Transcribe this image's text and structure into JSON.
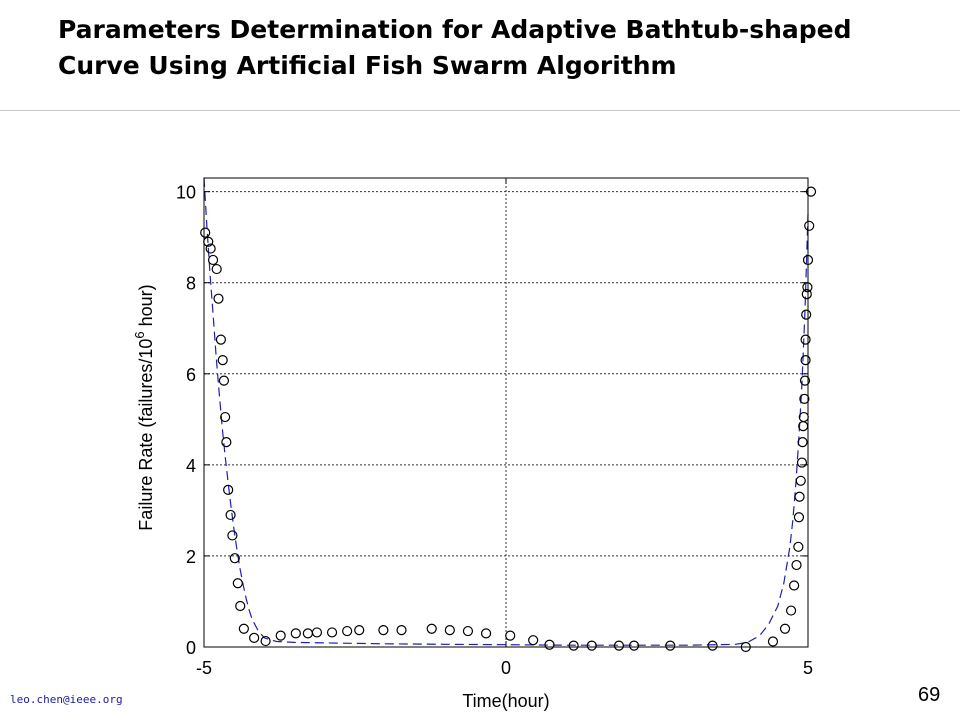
{
  "slide": {
    "title_line1": "Parameters Determination for Adaptive Bathtub-shaped",
    "title_line2": "Curve Using Artificial Fish Swarm Algorithm",
    "footer_email": "leo.chen@ieee.org",
    "page_number": "69"
  },
  "chart_data": {
    "type": "scatter",
    "xlabel": "Time(hour)",
    "ylabel_main": "Failure Rate (failures/10",
    "ylabel_sup": "6",
    "ylabel_tail": " hour)",
    "xlim": [
      -5,
      5
    ],
    "ylim": [
      0,
      10.3
    ],
    "x_ticks": [
      -5,
      0,
      5
    ],
    "x_tick_labels": [
      "-5",
      "0",
      "5"
    ],
    "y_ticks": [
      0,
      2,
      4,
      6,
      8,
      10
    ],
    "y_tick_labels": [
      "0",
      "2",
      "4",
      "6",
      "8",
      "10"
    ],
    "grid": "dotted",
    "colors": {
      "marker": "#000000",
      "curve": "#1f1fb0",
      "grid": "#333333"
    },
    "series": [
      {
        "kind": "observed",
        "marker": "circle",
        "points": [
          [
            -4.98,
            9.1
          ],
          [
            -4.93,
            8.9
          ],
          [
            -4.89,
            8.75
          ],
          [
            -4.85,
            8.5
          ],
          [
            -4.79,
            8.3
          ],
          [
            -4.76,
            7.65
          ],
          [
            -4.72,
            6.75
          ],
          [
            -4.69,
            6.3
          ],
          [
            -4.67,
            5.85
          ],
          [
            -4.65,
            5.05
          ],
          [
            -4.63,
            4.5
          ],
          [
            -4.6,
            3.45
          ],
          [
            -4.56,
            2.9
          ],
          [
            -4.53,
            2.45
          ],
          [
            -4.49,
            1.95
          ],
          [
            -4.44,
            1.4
          ],
          [
            -4.4,
            0.9
          ],
          [
            -4.34,
            0.4
          ],
          [
            -4.17,
            0.2
          ],
          [
            -3.98,
            0.13
          ],
          [
            -3.73,
            0.25
          ],
          [
            -3.48,
            0.3
          ],
          [
            -3.28,
            0.3
          ],
          [
            -3.13,
            0.32
          ],
          [
            -2.88,
            0.32
          ],
          [
            -2.63,
            0.35
          ],
          [
            -2.43,
            0.37
          ],
          [
            -2.03,
            0.37
          ],
          [
            -1.73,
            0.37
          ],
          [
            -1.23,
            0.4
          ],
          [
            -0.93,
            0.37
          ],
          [
            -0.63,
            0.35
          ],
          [
            -0.33,
            0.3
          ],
          [
            0.07,
            0.25
          ],
          [
            0.45,
            0.15
          ],
          [
            0.72,
            0.05
          ],
          [
            1.12,
            0.03
          ],
          [
            1.42,
            0.03
          ],
          [
            1.87,
            0.03
          ],
          [
            2.12,
            0.03
          ],
          [
            2.72,
            0.03
          ],
          [
            3.42,
            0.03
          ],
          [
            3.97,
            0.0
          ],
          [
            4.42,
            0.12
          ],
          [
            4.62,
            0.4
          ],
          [
            4.72,
            0.8
          ],
          [
            4.77,
            1.35
          ],
          [
            4.81,
            1.8
          ],
          [
            4.84,
            2.2
          ],
          [
            4.85,
            2.85
          ],
          [
            4.86,
            3.3
          ],
          [
            4.88,
            3.65
          ],
          [
            4.9,
            4.05
          ],
          [
            4.91,
            4.5
          ],
          [
            4.92,
            4.85
          ],
          [
            4.93,
            5.05
          ],
          [
            4.94,
            5.45
          ],
          [
            4.95,
            5.85
          ],
          [
            4.96,
            6.3
          ],
          [
            4.96,
            6.75
          ],
          [
            4.97,
            7.3
          ],
          [
            4.98,
            7.75
          ],
          [
            4.99,
            7.9
          ],
          [
            5.0,
            8.5
          ],
          [
            5.02,
            9.25
          ],
          [
            5.05,
            10.0
          ]
        ]
      },
      {
        "kind": "fitted",
        "style": "dashed",
        "points": [
          [
            -5.0,
            10.3
          ],
          [
            -4.95,
            9.2
          ],
          [
            -4.9,
            8.2
          ],
          [
            -4.85,
            7.3
          ],
          [
            -4.8,
            6.4
          ],
          [
            -4.75,
            5.6
          ],
          [
            -4.7,
            4.85
          ],
          [
            -4.65,
            4.2
          ],
          [
            -4.6,
            3.6
          ],
          [
            -4.55,
            3.05
          ],
          [
            -4.5,
            2.55
          ],
          [
            -4.45,
            2.1
          ],
          [
            -4.4,
            1.7
          ],
          [
            -4.35,
            1.35
          ],
          [
            -4.3,
            1.05
          ],
          [
            -4.25,
            0.8
          ],
          [
            -4.2,
            0.6
          ],
          [
            -4.1,
            0.35
          ],
          [
            -4.0,
            0.2
          ],
          [
            -3.8,
            0.12
          ],
          [
            -3.5,
            0.1
          ],
          [
            -3.0,
            0.09
          ],
          [
            -2.0,
            0.07
          ],
          [
            -1.0,
            0.06
          ],
          [
            0.0,
            0.05
          ],
          [
            1.0,
            0.04
          ],
          [
            2.0,
            0.04
          ],
          [
            3.0,
            0.04
          ],
          [
            3.5,
            0.05
          ],
          [
            3.8,
            0.06
          ],
          [
            4.0,
            0.1
          ],
          [
            4.2,
            0.25
          ],
          [
            4.35,
            0.5
          ],
          [
            4.5,
            0.9
          ],
          [
            4.6,
            1.4
          ],
          [
            4.7,
            2.2
          ],
          [
            4.75,
            2.8
          ],
          [
            4.8,
            3.6
          ],
          [
            4.85,
            4.6
          ],
          [
            4.9,
            5.8
          ],
          [
            4.95,
            7.4
          ],
          [
            5.0,
            9.5
          ]
        ]
      }
    ]
  }
}
